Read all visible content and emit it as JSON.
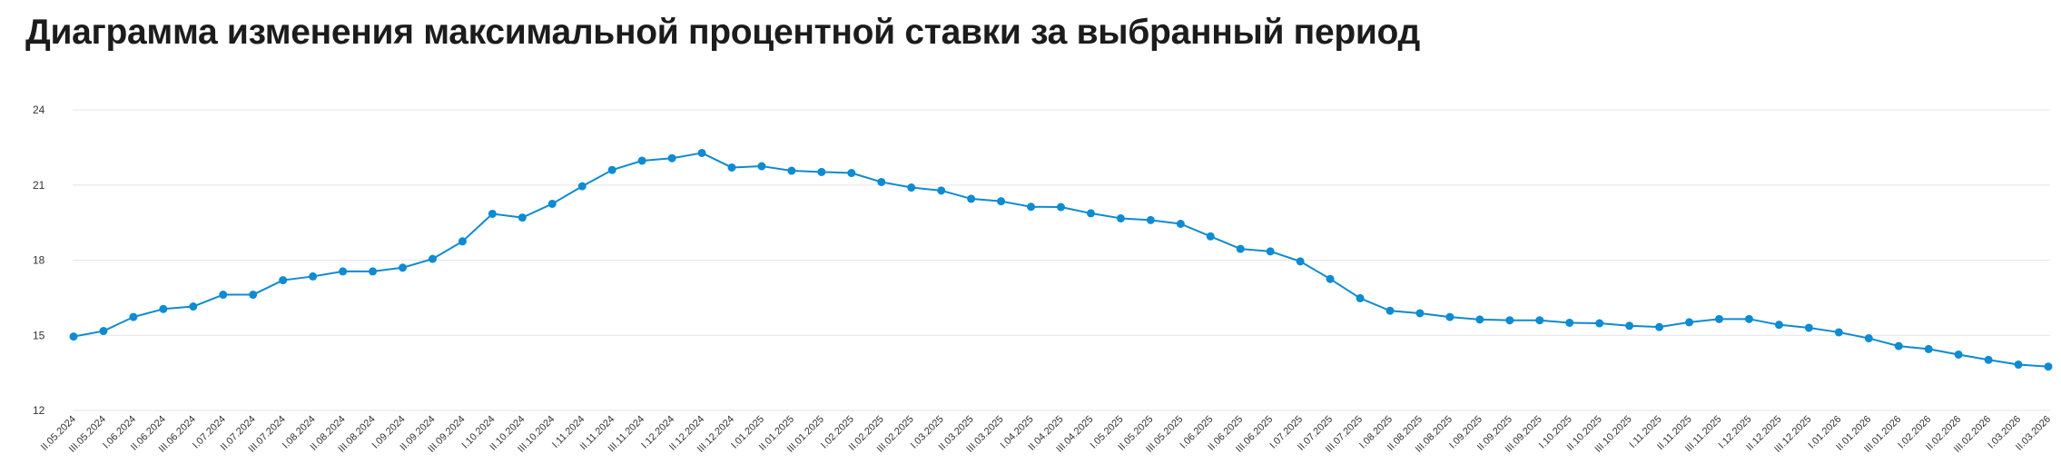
{
  "page": {
    "title": "Диаграмма изменения максимальной процентной ставки за выбранный период"
  },
  "chart_data": {
    "type": "line",
    "title": "Диаграмма изменения максимальной процентной ставки за выбранный период",
    "xlabel": "",
    "ylabel": "",
    "ylim": [
      12,
      24
    ],
    "y_ticks": [
      12,
      15,
      18,
      21,
      24
    ],
    "grid": true,
    "legend": "none",
    "series_color": "#0e8bd1",
    "categories": [
      "II.05.2024",
      "III.05.2024",
      "I.06.2024",
      "II.06.2024",
      "III.06.2024",
      "I.07.2024",
      "II.07.2024",
      "III.07.2024",
      "I.08.2024",
      "II.08.2024",
      "III.08.2024",
      "I.09.2024",
      "II.09.2024",
      "III.09.2024",
      "I.10.2024",
      "II.10.2024",
      "III.10.2024",
      "I.11.2024",
      "II.11.2024",
      "III.11.2024",
      "I.12.2024",
      "II.12.2024",
      "III.12.2024",
      "I.01.2025",
      "II.01.2025",
      "III.01.2025",
      "I.02.2025",
      "II.02.2025",
      "III.02.2025",
      "I.03.2025",
      "II.03.2025",
      "III.03.2025",
      "I.04.2025",
      "II.04.2025",
      "III.04.2025",
      "I.05.2025",
      "II.05.2025",
      "III.05.2025",
      "I.06.2025",
      "II.06.2025",
      "III.06.2025",
      "I.07.2025",
      "II.07.2025",
      "III.07.2025",
      "I.08.2025",
      "II.08.2025",
      "III.08.2025",
      "I.09.2025",
      "II.09.2025",
      "III.09.2025",
      "I.10.2025",
      "II.10.2025",
      "III.10.2025",
      "I.11.2025",
      "II.11.2025",
      "III.11.2025",
      "I.12.2025",
      "II.12.2025",
      "III.12.2025",
      "I.01.2026",
      "II.01.2026",
      "III.01.2026",
      "I.02.2026",
      "II.02.2026",
      "III.02.2026",
      "I.03.2026",
      "II.03.2026"
    ],
    "series": [
      {
        "values": [
          14.95,
          15.17,
          15.73,
          16.05,
          16.15,
          16.62,
          16.62,
          17.2,
          17.35,
          17.55,
          17.55,
          17.7,
          18.05,
          18.75,
          19.85,
          19.7,
          20.25,
          20.95,
          21.6,
          21.97,
          22.07,
          22.28,
          21.7,
          21.75,
          21.57,
          21.52,
          21.48,
          21.12,
          20.9,
          20.78,
          20.45,
          20.35,
          20.13,
          20.12,
          19.87,
          19.67,
          19.6,
          19.45,
          18.95,
          18.45,
          18.35,
          17.95,
          17.25,
          16.48,
          15.98,
          15.88,
          15.73,
          15.63,
          15.6,
          15.6,
          15.5,
          15.48,
          15.38,
          15.33,
          15.52,
          15.65,
          15.65,
          15.42,
          15.3,
          15.12,
          14.88,
          14.57,
          14.45,
          14.23,
          14.02,
          13.83,
          13.75
        ]
      }
    ]
  }
}
